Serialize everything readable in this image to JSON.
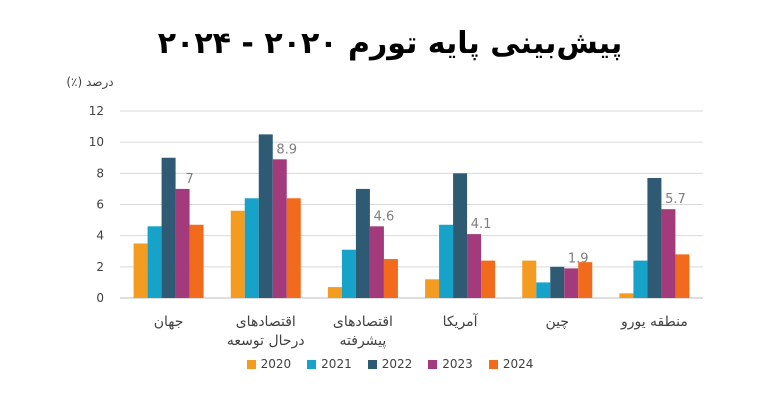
{
  "title": "پیش‌بینی پایه تورم ۲۰۲۰ - ۲۰۲۴",
  "chart_data": {
    "type": "bar",
    "ylabel": "درصد (٪)",
    "ylim": [
      0,
      12
    ],
    "yticks": [
      0,
      2,
      4,
      6,
      8,
      10,
      12
    ],
    "grid": true,
    "legend_position": "bottom",
    "categories": [
      [
        "جهان"
      ],
      [
        "اقتصادهای",
        "درحال توسعه"
      ],
      [
        "اقتصادهای",
        "پیشرفته"
      ],
      [
        "آمریکا"
      ],
      [
        "چین"
      ],
      [
        "منطقه یورو"
      ]
    ],
    "series": [
      {
        "name": "2020",
        "color": "#f39c1f",
        "values": [
          3.5,
          5.6,
          0.7,
          1.2,
          2.4,
          0.3
        ]
      },
      {
        "name": "2021",
        "color": "#17a2c9",
        "values": [
          4.6,
          6.4,
          3.1,
          4.7,
          1.0,
          2.4
        ]
      },
      {
        "name": "2022",
        "color": "#2f5a73",
        "values": [
          9.0,
          10.5,
          7.0,
          8.0,
          2.0,
          7.7
        ]
      },
      {
        "name": "2023",
        "color": "#a23a7b",
        "values": [
          7.0,
          8.9,
          4.6,
          4.1,
          1.9,
          5.7
        ]
      },
      {
        "name": "2024",
        "color": "#f26a1b",
        "values": [
          4.7,
          6.4,
          2.5,
          2.4,
          2.3,
          2.8
        ]
      }
    ],
    "data_labels": {
      "series": "2023",
      "values": [
        "7",
        "8.9",
        "4.6",
        "4.1",
        "1.9",
        "5.7"
      ]
    }
  }
}
